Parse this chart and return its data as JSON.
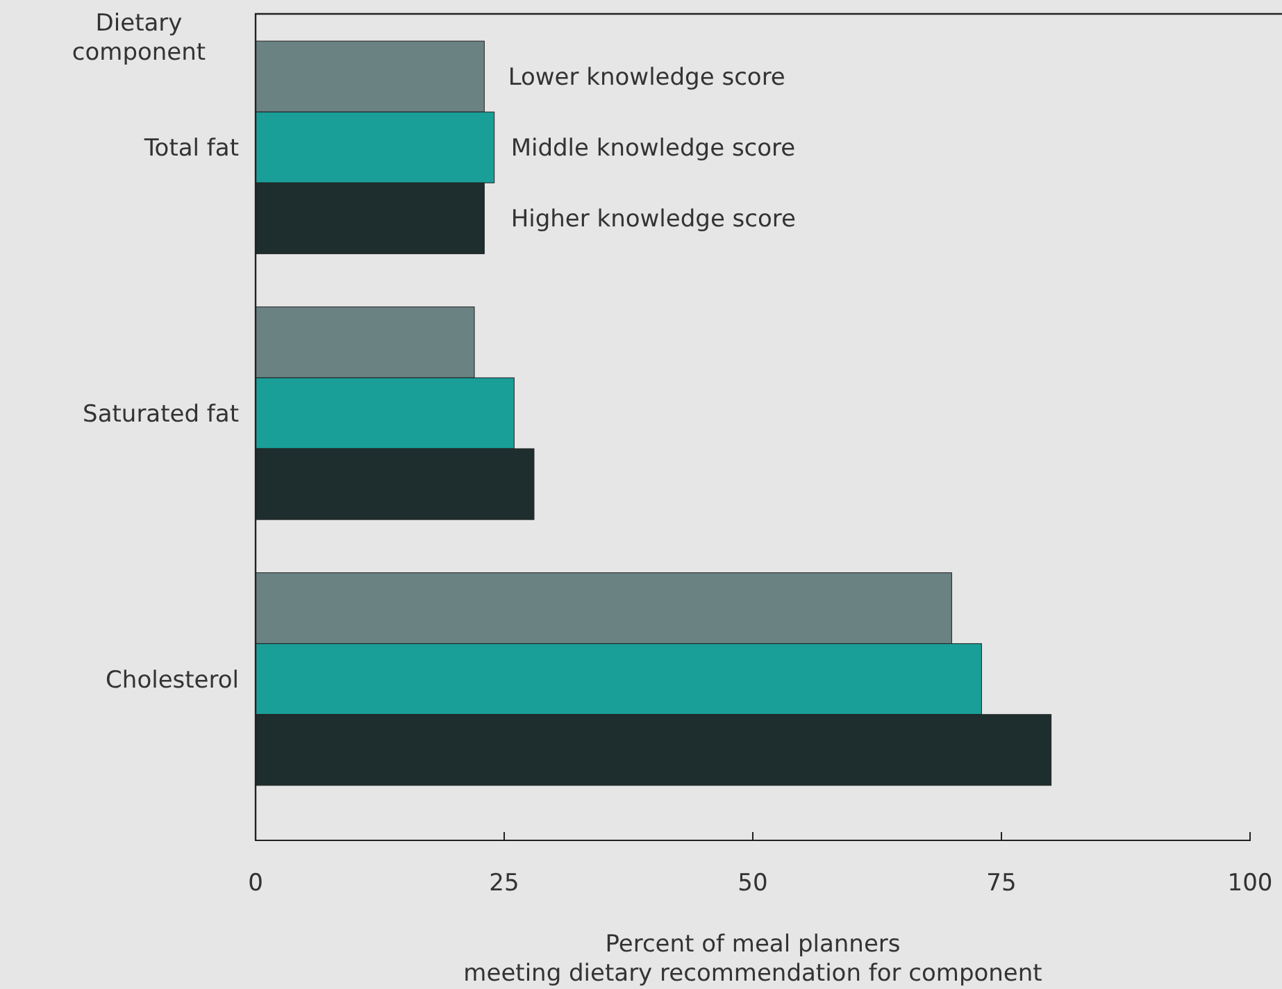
{
  "chart_data": {
    "type": "bar",
    "orientation": "horizontal",
    "ylabel": "Dietary component",
    "xlabel": "Percent of meal planners\nmeeting dietary recommendation for component",
    "categories": [
      "Total fat",
      "Saturated fat",
      "Cholesterol"
    ],
    "series": [
      {
        "name": "Lower knowledge score",
        "color": "#6b8283",
        "values": [
          23,
          22,
          70
        ]
      },
      {
        "name": "Middle knowledge score",
        "color": "#1a9e98",
        "values": [
          24,
          26,
          73
        ]
      },
      {
        "name": "Higher knowledge score",
        "color": "#1e2d2d",
        "values": [
          23,
          28,
          80
        ]
      }
    ],
    "xlim": [
      0,
      100
    ],
    "xticks": [
      0,
      25,
      50,
      75,
      100
    ],
    "grid": false
  }
}
